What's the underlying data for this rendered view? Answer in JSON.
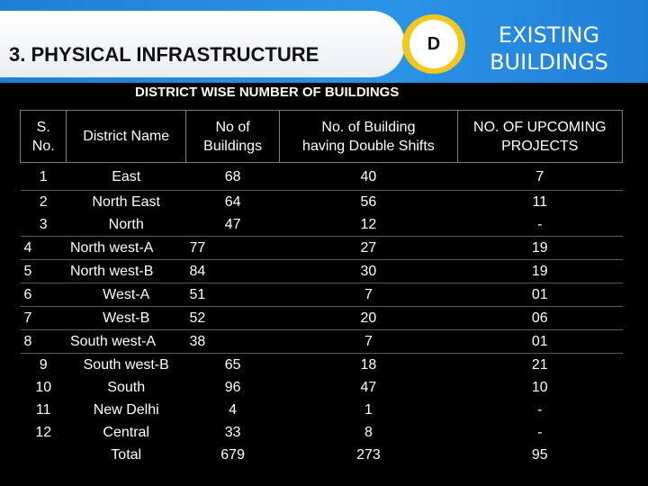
{
  "header": {
    "title": "3. PHYSICAL INFRASTRUCTURE",
    "badge": "D",
    "existing_line1": "EXISTING",
    "existing_line2": "BUILDINGS"
  },
  "subtitle": "DISTRICT WISE NUMBER OF BUILDINGS",
  "table": {
    "headers": {
      "sno_line1": "S.",
      "sno_line2": "No.",
      "name": "District Name",
      "buildings_line1": "No of",
      "buildings_line2": "Buildings",
      "double_line1": "No. of Building",
      "double_line2": "having Double Shifts",
      "upcoming_line1": "NO. OF UPCOMING",
      "upcoming_line2": "PROJECTS"
    },
    "rows": [
      {
        "sno": "1",
        "name": "East",
        "buildings": "68",
        "double": "40",
        "upcoming": "7"
      },
      {
        "sno": "2",
        "name": "North East",
        "buildings": "64",
        "double": "56",
        "upcoming": "11"
      },
      {
        "sno": "3",
        "name": "North",
        "buildings": "47",
        "double": "12",
        "upcoming": "-"
      },
      {
        "sno": "4",
        "name": "North west-A",
        "buildings": "77",
        "double": "27",
        "upcoming": "19"
      },
      {
        "sno": "5",
        "name": "North west-B",
        "buildings": "84",
        "double": "30",
        "upcoming": "19"
      },
      {
        "sno": "6",
        "name": "West-A",
        "buildings": "51",
        "double": "7",
        "upcoming": "01"
      },
      {
        "sno": "7",
        "name": "West-B",
        "buildings": "52",
        "double": "20",
        "upcoming": "06"
      },
      {
        "sno": "8",
        "name": "South west-A",
        "buildings": "38",
        "double": "7",
        "upcoming": "01"
      },
      {
        "sno": "9",
        "name": "South west-B",
        "buildings": "65",
        "double": "18",
        "upcoming": "21"
      },
      {
        "sno": "10",
        "name": "South",
        "buildings": "96",
        "double": "47",
        "upcoming": "10"
      },
      {
        "sno": "11",
        "name": "New Delhi",
        "buildings": "4",
        "double": "1",
        "upcoming": "-"
      },
      {
        "sno": "12",
        "name": "Central",
        "buildings": "33",
        "double": "8",
        "upcoming": "-"
      }
    ],
    "total": {
      "name": "Total",
      "buildings": "679",
      "double": "273",
      "upcoming": "95"
    }
  }
}
